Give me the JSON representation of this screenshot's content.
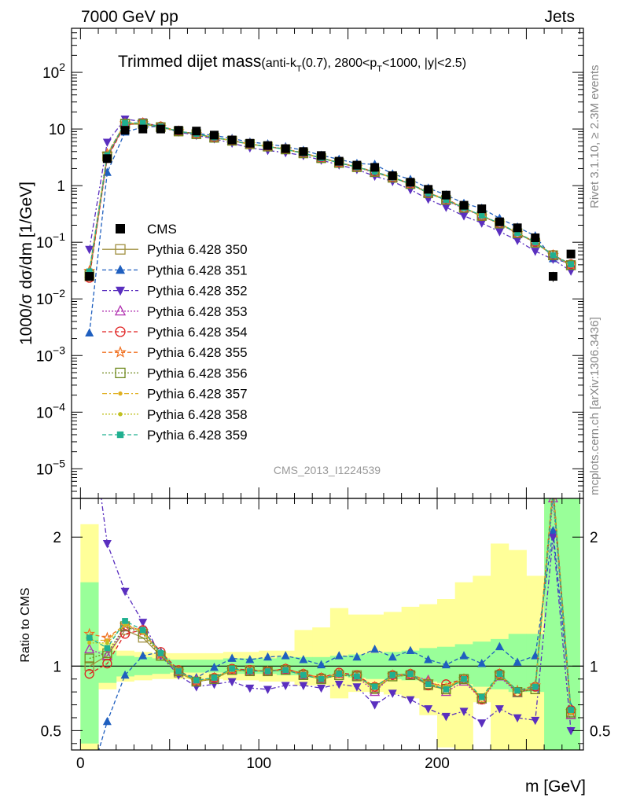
{
  "header": {
    "left": "7000 GeV pp",
    "right": "Jets"
  },
  "side_labels": {
    "rivet": "Rivet 3.1.10, ≥ 2.3M events",
    "mcplots": "mcplots.cern.ch [arXiv:1306.3436]"
  },
  "chart_data": [
    {
      "type": "scatter",
      "title_main": "Trimmed dijet mass",
      "title_cuts_parts": [
        "(anti-k",
        "T",
        "(0.7), 2800<p",
        "T",
        "<1000, |y|<2.5)"
      ],
      "ylabel": "1000/σ dσ/dm [1/GeV]",
      "ylog": true,
      "ylim": [
        3e-06,
        600
      ],
      "xlim": [
        -5,
        282
      ],
      "y_ticks": [
        {
          "value": 1e-05,
          "base": "10",
          "exp": "−5"
        },
        {
          "value": 0.0001,
          "base": "10",
          "exp": "−4"
        },
        {
          "value": 0.001,
          "base": "10",
          "exp": "−3"
        },
        {
          "value": 0.01,
          "base": "10",
          "exp": "−2"
        },
        {
          "value": 0.1,
          "base": "10",
          "exp": "−1"
        },
        {
          "value": 1,
          "label": "1"
        },
        {
          "value": 10,
          "label": "10"
        },
        {
          "value": 100,
          "base": "10",
          "exp": "2"
        }
      ],
      "watermark": "CMS_2013_I1224539",
      "x": [
        5,
        15,
        25,
        35,
        45,
        55,
        65,
        75,
        85,
        95,
        105,
        115,
        125,
        135,
        145,
        155,
        165,
        175,
        185,
        195,
        205,
        215,
        225,
        235,
        245,
        255,
        265,
        275
      ],
      "cms": [
        0.025,
        3.0,
        9.5,
        10.0,
        10.0,
        9.5,
        9.2,
        7.8,
        6.4,
        5.6,
        5.1,
        4.5,
        4.0,
        3.4,
        2.7,
        2.3,
        2.1,
        1.5,
        1.15,
        0.86,
        0.68,
        0.45,
        0.39,
        0.23,
        0.18,
        0.12,
        0.025,
        0.062
      ],
      "cms_err": [
        0.004,
        0.2,
        0.4,
        0.4,
        0.3,
        0.3,
        0.3,
        0.2,
        0.2,
        0.15,
        0.15,
        0.12,
        0.1,
        0.1,
        0.08,
        0.07,
        0.07,
        0.06,
        0.05,
        0.04,
        0.04,
        0.03,
        0.03,
        0.02,
        0.02,
        0.015,
        0.005,
        0.01
      ],
      "legend": [
        {
          "name": "CMS",
          "color": "#000000",
          "marker": "square-filled",
          "dash": "none"
        },
        {
          "name": "Pythia 6.428 350",
          "color": "#a09040",
          "marker": "square-open",
          "dash": "solid"
        },
        {
          "name": "Pythia 6.428 351",
          "color": "#1f5fbf",
          "marker": "triangle-up-filled",
          "dash": "5,3"
        },
        {
          "name": "Pythia 6.428 352",
          "color": "#5a2fbf",
          "marker": "triangle-down-filled",
          "dash": "6,3,2,3"
        },
        {
          "name": "Pythia 6.428 353",
          "color": "#b030b0",
          "marker": "triangle-up-open",
          "dash": "2,2"
        },
        {
          "name": "Pythia 6.428 354",
          "color": "#e02020",
          "marker": "circle-open",
          "dash": "5,3"
        },
        {
          "name": "Pythia 6.428 355",
          "color": "#f07020",
          "marker": "star-open",
          "dash": "5,3"
        },
        {
          "name": "Pythia 6.428 356",
          "color": "#708a20",
          "marker": "square-open",
          "dash": "2,2"
        },
        {
          "name": "Pythia 6.428 357",
          "color": "#e0b020",
          "marker": "dot",
          "dash": "6,3,2,3"
        },
        {
          "name": "Pythia 6.428 358",
          "color": "#c0c020",
          "marker": "dot",
          "dash": "2,2"
        },
        {
          "name": "Pythia 6.428 359",
          "color": "#20b090",
          "marker": "square-filled-small",
          "dash": "5,3"
        }
      ]
    },
    {
      "type": "line",
      "ylabel": "Ratio to CMS",
      "ylim": [
        0.35,
        2.3
      ],
      "xlim": [
        -5,
        282
      ],
      "xlabel": "m [GeV]",
      "x_ticks": [
        0,
        100,
        200
      ],
      "y_ticks": [
        0.5,
        1,
        2
      ],
      "x": [
        5,
        15,
        25,
        35,
        45,
        55,
        65,
        75,
        85,
        95,
        105,
        115,
        125,
        135,
        145,
        155,
        165,
        175,
        185,
        195,
        205,
        215,
        225,
        235,
        245,
        255,
        265,
        275
      ],
      "band_inner": [
        [
          0.4,
          1.65
        ],
        [
          0.87,
          1.12
        ],
        [
          0.92,
          1.08
        ],
        [
          0.93,
          1.07
        ],
        [
          0.94,
          1.06
        ],
        [
          0.95,
          1.05
        ],
        [
          0.95,
          1.05
        ],
        [
          0.95,
          1.05
        ],
        [
          0.94,
          1.06
        ],
        [
          0.94,
          1.06
        ],
        [
          0.94,
          1.06
        ],
        [
          0.93,
          1.07
        ],
        [
          0.93,
          1.07
        ],
        [
          0.93,
          1.07
        ],
        [
          0.92,
          1.08
        ],
        [
          0.91,
          1.09
        ],
        [
          0.9,
          1.1
        ],
        [
          0.9,
          1.11
        ],
        [
          0.89,
          1.12
        ],
        [
          0.88,
          1.14
        ],
        [
          0.87,
          1.15
        ],
        [
          0.86,
          1.17
        ],
        [
          0.84,
          1.19
        ],
        [
          0.82,
          1.21
        ],
        [
          0.8,
          1.25
        ],
        [
          0.8,
          1.25
        ],
        [
          0.3,
          3.0
        ],
        [
          0.3,
          3.0
        ]
      ],
      "band_outer": [
        [
          0.3,
          2.1
        ],
        [
          0.82,
          1.18
        ],
        [
          0.88,
          1.12
        ],
        [
          0.89,
          1.11
        ],
        [
          0.9,
          1.1
        ],
        [
          0.9,
          1.1
        ],
        [
          0.9,
          1.1
        ],
        [
          0.9,
          1.1
        ],
        [
          0.89,
          1.11
        ],
        [
          0.89,
          1.11
        ],
        [
          0.88,
          1.12
        ],
        [
          0.88,
          1.12
        ],
        [
          0.85,
          1.28
        ],
        [
          0.85,
          1.3
        ],
        [
          0.75,
          1.45
        ],
        [
          0.8,
          1.4
        ],
        [
          0.8,
          1.4
        ],
        [
          0.78,
          1.42
        ],
        [
          0.75,
          1.46
        ],
        [
          0.62,
          1.48
        ],
        [
          0.37,
          1.52
        ],
        [
          0.3,
          1.65
        ],
        [
          0.72,
          1.7
        ],
        [
          0.3,
          1.95
        ],
        [
          0.3,
          1.9
        ],
        [
          0.3,
          1.7
        ],
        [
          0.3,
          3.0
        ],
        [
          0.3,
          3.0
        ]
      ],
      "series": [
        {
          "name": "Pythia 6.428 350",
          "values": [
            1.0,
            1.08,
            1.28,
            1.22,
            1.08,
            0.95,
            0.88,
            0.9,
            0.97,
            0.97,
            0.96,
            0.97,
            0.93,
            0.9,
            0.93,
            0.93,
            0.82,
            0.92,
            0.93,
            0.85,
            0.82,
            0.9,
            0.75,
            0.93,
            0.8,
            0.82,
            2.35,
            0.63
          ]
        },
        {
          "name": "Pythia 6.428 351",
          "values": [
            0.1,
            0.57,
            0.93,
            1.08,
            1.11,
            0.95,
            0.91,
            0.99,
            1.06,
            1.05,
            1.07,
            1.08,
            1.05,
            1.01,
            1.08,
            1.07,
            1.13,
            1.07,
            1.12,
            1.05,
            1.01,
            1.08,
            1.02,
            1.15,
            1.03,
            1.08,
            2.05,
            0.68
          ]
        },
        {
          "name": "Pythia 6.428 352",
          "values": [
            3.0,
            1.95,
            1.58,
            1.34,
            1.08,
            0.93,
            0.84,
            0.86,
            0.88,
            0.83,
            0.82,
            0.85,
            0.85,
            0.83,
            0.86,
            0.84,
            0.7,
            0.79,
            0.74,
            0.67,
            0.61,
            0.65,
            0.56,
            0.67,
            0.6,
            0.58,
            2.0,
            0.5
          ]
        },
        {
          "name": "Pythia 6.428 353",
          "values": [
            1.13,
            1.08,
            1.3,
            1.28,
            1.09,
            0.96,
            0.89,
            0.91,
            0.97,
            0.96,
            0.96,
            0.97,
            0.93,
            0.9,
            0.94,
            0.92,
            0.8,
            0.93,
            0.93,
            0.89,
            0.8,
            0.88,
            0.74,
            0.92,
            0.79,
            0.84,
            2.3,
            0.62
          ]
        },
        {
          "name": "Pythia 6.428 354",
          "values": [
            0.94,
            1.02,
            1.25,
            1.28,
            1.11,
            0.97,
            0.88,
            0.91,
            0.98,
            0.97,
            0.96,
            0.98,
            0.94,
            0.91,
            0.95,
            0.93,
            0.84,
            0.93,
            0.94,
            0.85,
            0.86,
            0.9,
            0.74,
            0.94,
            0.8,
            0.84,
            2.4,
            0.66
          ]
        },
        {
          "name": "Pythia 6.428 355",
          "values": [
            1.25,
            1.22,
            1.32,
            1.27,
            1.09,
            0.96,
            0.88,
            0.91,
            0.97,
            0.96,
            0.96,
            0.98,
            0.94,
            0.91,
            0.94,
            0.92,
            0.84,
            0.93,
            0.94,
            0.88,
            0.83,
            0.9,
            0.74,
            0.94,
            0.81,
            0.85,
            2.38,
            0.65
          ]
        },
        {
          "name": "Pythia 6.428 356",
          "values": [
            1.06,
            1.1,
            1.31,
            1.25,
            1.08,
            0.96,
            0.88,
            0.9,
            0.97,
            0.96,
            0.96,
            0.97,
            0.93,
            0.9,
            0.93,
            0.92,
            0.83,
            0.92,
            0.93,
            0.86,
            0.82,
            0.9,
            0.75,
            0.93,
            0.8,
            0.82,
            2.36,
            0.64
          ]
        },
        {
          "name": "Pythia 6.428 357",
          "values": [
            1.2,
            1.2,
            1.33,
            1.27,
            1.1,
            0.96,
            0.88,
            0.91,
            0.97,
            0.96,
            0.96,
            0.97,
            0.93,
            0.9,
            0.94,
            0.92,
            0.83,
            0.92,
            0.94,
            0.86,
            0.84,
            0.9,
            0.75,
            0.93,
            0.81,
            0.83,
            2.37,
            0.64
          ]
        },
        {
          "name": "Pythia 6.428 358",
          "values": [
            1.18,
            1.18,
            1.32,
            1.26,
            1.09,
            0.96,
            0.88,
            0.91,
            0.97,
            0.96,
            0.96,
            0.97,
            0.93,
            0.9,
            0.94,
            0.92,
            0.83,
            0.92,
            0.94,
            0.86,
            0.84,
            0.9,
            0.75,
            0.93,
            0.81,
            0.83,
            2.37,
            0.64
          ]
        },
        {
          "name": "Pythia 6.428 359",
          "values": [
            1.22,
            1.14,
            1.35,
            1.28,
            1.1,
            0.96,
            0.89,
            0.91,
            0.98,
            0.96,
            0.96,
            0.97,
            0.93,
            0.9,
            0.94,
            0.92,
            0.84,
            0.93,
            0.94,
            0.86,
            0.82,
            0.9,
            0.76,
            0.94,
            0.81,
            0.84,
            2.36,
            0.66
          ]
        }
      ]
    }
  ]
}
